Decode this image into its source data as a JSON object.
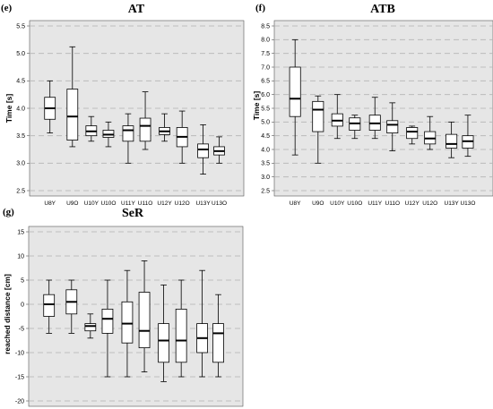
{
  "chart_data": [
    {
      "type": "box",
      "panel": "(e)",
      "title": "AT",
      "ylabel": "Time [s]",
      "ylim": [
        2.5,
        5.5
      ],
      "yticks": [
        "2.5",
        "3.0",
        "3.5",
        "4.0",
        "4.5",
        "5.0",
        "5.5"
      ],
      "grid": "horizontal-dashed",
      "categories": [
        "U8Y",
        "U9O",
        "U10Y",
        "U10O",
        "U11Y",
        "U11O",
        "U12Y",
        "U12O",
        "U13Y",
        "U13O"
      ],
      "boxes": [
        {
          "category": "U8Y",
          "min": 3.55,
          "q1": 3.8,
          "median": 4.0,
          "q3": 4.2,
          "max": 4.5
        },
        {
          "category": "U9O",
          "min": 3.3,
          "q1": 3.42,
          "median": 3.85,
          "q3": 4.35,
          "max": 5.12
        },
        {
          "category": "U10Y",
          "min": 3.4,
          "q1": 3.5,
          "median": 3.58,
          "q3": 3.68,
          "max": 3.85
        },
        {
          "category": "U10O",
          "min": 3.3,
          "q1": 3.47,
          "median": 3.52,
          "q3": 3.6,
          "max": 3.75
        },
        {
          "category": "U11Y",
          "min": 3.0,
          "q1": 3.4,
          "median": 3.6,
          "q3": 3.68,
          "max": 3.9
        },
        {
          "category": "U11O",
          "min": 3.25,
          "q1": 3.4,
          "median": 3.68,
          "q3": 3.82,
          "max": 4.3
        },
        {
          "category": "U12Y",
          "min": 3.4,
          "q1": 3.52,
          "median": 3.58,
          "q3": 3.65,
          "max": 3.9
        },
        {
          "category": "U12O",
          "min": 3.0,
          "q1": 3.3,
          "median": 3.48,
          "q3": 3.65,
          "max": 3.95
        },
        {
          "category": "U13Y",
          "min": 2.8,
          "q1": 3.1,
          "median": 3.25,
          "q3": 3.35,
          "max": 3.7
        },
        {
          "category": "U13O",
          "min": 3.0,
          "q1": 3.15,
          "median": 3.22,
          "q3": 3.3,
          "max": 3.48
        }
      ]
    },
    {
      "type": "box",
      "panel": "(f)",
      "title": "ATB",
      "ylabel": "Time [s]",
      "ylim": [
        2.5,
        8.5
      ],
      "yticks": [
        "2.5",
        "3.0",
        "3.5",
        "4.0",
        "4.5",
        "5.0",
        "5.5",
        "6.0",
        "6.5",
        "7.0",
        "7.5",
        "8.0",
        "8.5"
      ],
      "grid": "horizontal-dashed",
      "categories": [
        "U8Y",
        "U9O",
        "U10Y",
        "U10O",
        "U11Y",
        "U11O",
        "U12Y",
        "U12O",
        "U13Y",
        "U13O"
      ],
      "boxes": [
        {
          "category": "U8Y",
          "min": 3.8,
          "q1": 5.2,
          "median": 5.85,
          "q3": 7.0,
          "max": 8.0
        },
        {
          "category": "U9O",
          "min": 3.5,
          "q1": 4.65,
          "median": 5.45,
          "q3": 5.75,
          "max": 5.95
        },
        {
          "category": "U10Y",
          "min": 4.4,
          "q1": 4.85,
          "median": 5.05,
          "q3": 5.3,
          "max": 6.0
        },
        {
          "category": "U10O",
          "min": 4.4,
          "q1": 4.7,
          "median": 4.95,
          "q3": 5.15,
          "max": 5.25
        },
        {
          "category": "U11Y",
          "min": 4.4,
          "q1": 4.7,
          "median": 4.95,
          "q3": 5.25,
          "max": 5.9
        },
        {
          "category": "U11O",
          "min": 3.95,
          "q1": 4.6,
          "median": 4.9,
          "q3": 5.05,
          "max": 5.7
        },
        {
          "category": "U12Y",
          "min": 4.2,
          "q1": 4.4,
          "median": 4.65,
          "q3": 4.8,
          "max": 4.85
        },
        {
          "category": "U12O",
          "min": 4.0,
          "q1": 4.2,
          "median": 4.4,
          "q3": 4.65,
          "max": 5.2
        },
        {
          "category": "U13Y",
          "min": 3.7,
          "q1": 4.05,
          "median": 4.2,
          "q3": 4.55,
          "max": 5.0
        },
        {
          "category": "U13O",
          "min": 3.75,
          "q1": 4.05,
          "median": 4.3,
          "q3": 4.5,
          "max": 5.25
        }
      ]
    },
    {
      "type": "box",
      "panel": "(g)",
      "title": "SeR",
      "ylabel": "reached distance [cm]",
      "ylim": [
        -20,
        15
      ],
      "yticks": [
        "-20",
        "-15",
        "-10",
        "-5",
        "0",
        "5",
        "10",
        "15"
      ],
      "grid": "horizontal-dashed",
      "categories": [
        "U8Y",
        "U9O",
        "U10Y",
        "U10O",
        "U11Y",
        "U11O",
        "U12Y",
        "U12O",
        "U13Y",
        "U13O"
      ],
      "boxes": [
        {
          "category": "U8Y",
          "min": -6.0,
          "q1": -2.5,
          "median": 0.0,
          "q3": 2.0,
          "max": 5.0
        },
        {
          "category": "U9O",
          "min": -6.0,
          "q1": -2.0,
          "median": 0.5,
          "q3": 3.0,
          "max": 5.0
        },
        {
          "category": "U10Y",
          "min": -7.0,
          "q1": -5.5,
          "median": -4.5,
          "q3": -4.0,
          "max": -2.0
        },
        {
          "category": "U10O",
          "min": -15.0,
          "q1": -6.0,
          "median": -3.0,
          "q3": -1.0,
          "max": 5.0
        },
        {
          "category": "U11Y",
          "min": -15.0,
          "q1": -8.0,
          "median": -4.0,
          "q3": 0.5,
          "max": 7.0
        },
        {
          "category": "U11O",
          "min": -14.0,
          "q1": -9.0,
          "median": -5.5,
          "q3": 2.5,
          "max": 9.0
        },
        {
          "category": "U12Y",
          "min": -16.0,
          "q1": -12.0,
          "median": -7.5,
          "q3": -4.0,
          "max": 4.0
        },
        {
          "category": "U12O",
          "min": -15.0,
          "q1": -12.0,
          "median": -7.5,
          "q3": -1.0,
          "max": 5.0
        },
        {
          "category": "U13Y",
          "min": -15.0,
          "q1": -10.0,
          "median": -7.0,
          "q3": -4.0,
          "max": 7.0
        },
        {
          "category": "U13O",
          "min": -15.0,
          "q1": -12.0,
          "median": -6.0,
          "q3": -4.0,
          "max": 2.0
        }
      ]
    }
  ],
  "colors": {
    "plot_background": "#e6e6e6",
    "box_fill": "#ffffff",
    "stroke": "#000000",
    "gridline": "#b3b3b3",
    "axis_line": "#555555"
  }
}
